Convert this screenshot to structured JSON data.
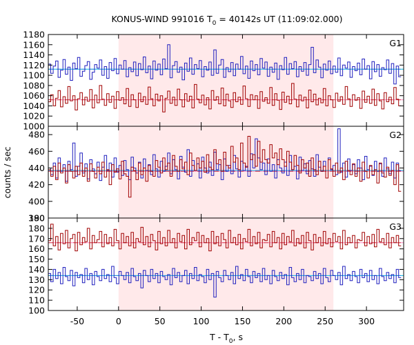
{
  "chart_data": {
    "type": "line",
    "title": {
      "prefix": "KONUS-WIND 991016 T",
      "sub": "0",
      "suffix": " = 40142s UT (11:09:02.000)"
    },
    "xlabel": {
      "prefix": "T - T",
      "sub": "0",
      "suffix": ", s"
    },
    "ylabel": "counts / sec",
    "xlim": [
      -85,
      345
    ],
    "xticks": [
      -50,
      0,
      50,
      100,
      150,
      200,
      250,
      300
    ],
    "highlight_interval": [
      0,
      260
    ],
    "colors": {
      "highlight": "#ffe9ea",
      "red_series": "#a00000",
      "blue_series": "#1f1fbe",
      "red_mean": "#ff8cc6",
      "blue_mean": "#00b7e6",
      "red_bg": "#c01010",
      "blue_bg": "#2a6fd0"
    },
    "x_start": -85,
    "bin_width": 2.944,
    "panels": [
      {
        "label": "G1",
        "ylim": [
          1000,
          1180
        ],
        "yticks": [
          1000,
          1020,
          1040,
          1060,
          1080,
          1100,
          1120,
          1140,
          1160,
          1180
        ],
        "series": [
          {
            "color_key": "blue_series",
            "mean": 1112,
            "values": [
              1122,
              1104,
              1118,
              1128,
              1096,
              1110,
              1131,
              1102,
              1116,
              1090,
              1124,
              1113,
              1135,
              1098,
              1108,
              1119,
              1127,
              1092,
              1106,
              1121,
              1114,
              1130,
              1100,
              1117,
              1094,
              1125,
              1109,
              1133,
              1103,
              1120,
              1112,
              1129,
              1097,
              1115,
              1107,
              1126,
              1099,
              1123,
              1111,
              1136,
              1105,
              1118,
              1093,
              1128,
              1110,
              1122,
              1101,
              1132,
              1113,
              1160,
              1095,
              1119,
              1127,
              1106,
              1116,
              1091,
              1124,
              1108,
              1134,
              1102,
              1121,
              1113,
              1129,
              1097,
              1117,
              1110,
              1126,
              1100,
              1150,
              1104,
              1120,
              1131,
              1096,
              1115,
              1107,
              1125,
              1099,
              1122,
              1112,
              1137,
              1103,
              1118,
              1094,
              1128,
              1109,
              1121,
              1101,
              1133,
              1114,
              1126,
              1098,
              1116,
              1106,
              1124,
              1092,
              1119,
              1111,
              1135,
              1102,
              1123,
              1113,
              1127,
              1097,
              1117,
              1108,
              1125,
              1100,
              1121,
              1155,
              1105,
              1130,
              1116,
              1095,
              1122,
              1110,
              1128,
              1103,
              1118,
              1106,
              1134,
              1099,
              1120,
              1114,
              1126,
              1096,
              1117,
              1109,
              1124,
              1101,
              1132,
              1112,
              1119,
              1093,
              1127,
              1107,
              1121,
              1098,
              1115,
              1111,
              1130,
              1104,
              1123,
              1083,
              1118,
              1097
            ]
          },
          {
            "color_key": "red_series",
            "mean": 1052,
            "values": [
              1048,
              1062,
              1040,
              1055,
              1070,
              1038,
              1058,
              1045,
              1078,
              1050,
              1060,
              1032,
              1054,
              1066,
              1042,
              1057,
              1049,
              1072,
              1036,
              1061,
              1046,
              1080,
              1053,
              1041,
              1064,
              1047,
              1059,
              1035,
              1068,
              1051,
              1056,
              1044,
              1074,
              1039,
              1062,
              1052,
              1037,
              1065,
              1048,
              1058,
              1043,
              1077,
              1054,
              1040,
              1063,
              1050,
              1060,
              1028,
              1055,
              1069,
              1045,
              1057,
              1041,
              1073,
              1052,
              1038,
              1064,
              1049,
              1059,
              1036,
              1082,
              1053,
              1046,
              1061,
              1042,
              1056,
              1034,
              1070,
              1051,
              1058,
              1044,
              1075,
              1040,
              1063,
              1050,
              1037,
              1066,
              1048,
              1057,
              1043,
              1079,
              1054,
              1039,
              1062,
              1052,
              1060,
              1035,
              1068,
              1049,
              1056,
              1045,
              1076,
              1041,
              1064,
              1051,
              1033,
              1067,
              1047,
              1059,
              1044,
              1084,
              1053,
              1038,
              1061,
              1050,
              1057,
              1036,
              1071,
              1048,
              1063,
              1042,
              1055,
              1046,
              1074,
              1040,
              1060,
              1052,
              1037,
              1065,
              1049,
              1058,
              1043,
              1078,
              1054,
              1039,
              1062,
              1051,
              1056,
              1035,
              1069,
              1047,
              1059,
              1045,
              1073,
              1041,
              1064,
              1050,
              1034,
              1066,
              1048,
              1057,
              1044,
              1076,
              1053,
              1040
            ]
          }
        ]
      },
      {
        "label": "G2",
        "ylim": [
          380,
          490
        ],
        "yticks": [
          380,
          400,
          420,
          440,
          460,
          480
        ],
        "series": [
          {
            "color_key": "blue_series",
            "mean": 437,
            "values": [
              440,
              432,
              446,
              428,
              452,
              436,
              444,
              424,
              448,
              438,
              470,
              430,
              442,
              458,
              434,
              445,
              427,
              450,
              439,
              433,
              447,
              425,
              441,
              455,
              437,
              446,
              429,
              452,
              435,
              443,
              431,
              449,
              438,
              426,
              453,
              440,
              434,
              447,
              428,
              451,
              437,
              444,
              432,
              456,
              439,
              429,
              448,
              436,
              442,
              458,
              433,
              450,
              438,
              427,
              454,
              441,
              435,
              462,
              430,
              449,
              437,
              445,
              428,
              453,
              440,
              434,
              447,
              431,
              459,
              438,
              444,
              426,
              451,
              436,
              443,
              433,
              455,
              439,
              429,
              448,
              437,
              442,
              430,
              457,
              440,
              475,
              452,
              438,
              446,
              432,
              451,
              436,
              444,
              428,
              450,
              440,
              434,
              447,
              431,
              455,
              438,
              442,
              427,
              453,
              437,
              445,
              433,
              449,
              439,
              430,
              456,
              441,
              436,
              448,
              428,
              452,
              438,
              443,
              432,
              487,
              435,
              446,
              429,
              451,
              437,
              444,
              433,
              450,
              440,
              426,
              454,
              438,
              442,
              431,
              448,
              436,
              445,
              430,
              452,
              439,
              433,
              447,
              428,
              446,
              437
            ]
          },
          {
            "color_key": "red_series",
            "mean": 436,
            "values": [
              438,
              430,
              442,
              426,
              446,
              434,
              440,
              422,
              444,
              436,
              428,
              442,
              432,
              446,
              430,
              440,
              424,
              445,
              436,
              428,
              441,
              433,
              447,
              429,
              438,
              420,
              444,
              435,
              439,
              427,
              448,
              433,
              430,
              405,
              441,
              437,
              426,
              446,
              432,
              440,
              424,
              443,
              436,
              430,
              449,
              441,
              434,
              452,
              438,
              446,
              430,
              455,
              442,
              436,
              450,
              439,
              447,
              432,
              458,
              443,
              437,
              452,
              440,
              448,
              435,
              456,
              441,
              438,
              462,
              445,
              450,
              436,
              459,
              443,
              440,
              466,
              447,
              452,
              438,
              470,
              446,
              441,
              478,
              450,
              456,
              442,
              472,
              447,
              462,
              450,
              446,
              468,
              452,
              458,
              444,
              463,
              450,
              442,
              460,
              447,
              438,
              455,
              443,
              434,
              450,
              440,
              446,
              430,
              452,
              438,
              432,
              448,
              436,
              442,
              428,
              450,
              439,
              430,
              446,
              434,
              440,
              426,
              448,
              437,
              432,
              445,
              430,
              440,
              424,
              447,
              436,
              428,
              443,
              432,
              438,
              422,
              446,
              434,
              429,
              441,
              431,
              437,
              420,
              444,
              412
            ]
          }
        ]
      },
      {
        "label": "G3",
        "ylim": [
          100,
          190
        ],
        "yticks": [
          100,
          110,
          120,
          130,
          140,
          150,
          160,
          170,
          180,
          190
        ],
        "series": [
          {
            "color_key": "red_series",
            "mean": 166,
            "values": [
              168,
              184,
              163,
              172,
              159,
              175,
              165,
              178,
              161,
              170,
              174,
              158,
              176,
              164,
              171,
              167,
              180,
              160,
              173,
              166,
              169,
              177,
              162,
              174,
              165,
              171,
              163,
              179,
              168,
              160,
              175,
              166,
              172,
              163,
              176,
              161,
              170,
              167,
              181,
              164,
              172,
              162,
              174,
              168,
              159,
              177,
              165,
              171,
              163,
              178,
              166,
              170,
              161,
              175,
              167,
              173,
              160,
              179,
              164,
              171,
              168,
              176,
              162,
              173,
              166,
              170,
              158,
              177,
              165,
              172,
              163,
              175,
              169,
              161,
              178,
              166,
              171,
              164,
              174,
              160,
              170,
              167,
              179,
              163,
              172,
              165,
              176,
              161,
              169,
              168,
              174,
              162,
              177,
              166,
              171,
              160,
              175,
              164,
              172,
              167,
              178,
              163,
              170,
              165,
              173,
              161,
              176,
              168,
              159,
              174,
              166,
              171,
              163,
              177,
              165,
              170,
              162,
              175,
              167,
              172,
              160,
              178,
              164,
              171,
              166,
              173,
              161,
              169,
              168,
              176,
              163,
              172,
              165,
              174,
              162,
              179,
              167,
              170,
              164,
              175,
              161,
              171,
              166,
              173,
              163
            ]
          },
          {
            "color_key": "blue_series",
            "mean": 134,
            "values": [
              136,
              128,
              140,
              131,
              137,
              126,
              142,
              133,
              129,
              139,
              124,
              137,
              132,
              135,
              127,
              141,
              130,
              136,
              125,
              138,
              133,
              129,
              140,
              131,
              135,
              128,
              143,
              132,
              126,
              138,
              134,
              130,
              137,
              127,
              141,
              133,
              129,
              136,
              122,
              139,
              134,
              128,
              140,
              131,
              136,
              127,
              138,
              133,
              130,
              135,
              125,
              141,
              132,
              137,
              128,
              134,
              139,
              126,
              136,
              131,
              142,
              129,
              135,
              133,
              127,
              140,
              130,
              136,
              113,
              138,
              132,
              128,
              139,
              134,
              130,
              137,
              126,
              143,
              131,
              135,
              129,
              140,
              133,
              127,
              138,
              132,
              136,
              128,
              141,
              130,
              134,
              126,
              139,
              133,
              129,
              137,
              131,
              135,
              125,
              142,
              132,
              128,
              136,
              130,
              140,
              127,
              134,
              133,
              129,
              138,
              131,
              136,
              126,
              141,
              132,
              128,
              139,
              134,
              130,
              137,
              125,
              143,
              131,
              135,
              129,
              138,
              133,
              127,
              140,
              132,
              136,
              128,
              139,
              130,
              134,
              126,
              141,
              133,
              129,
              137,
              131,
              135,
              127,
              140,
              132
            ]
          }
        ]
      }
    ]
  }
}
